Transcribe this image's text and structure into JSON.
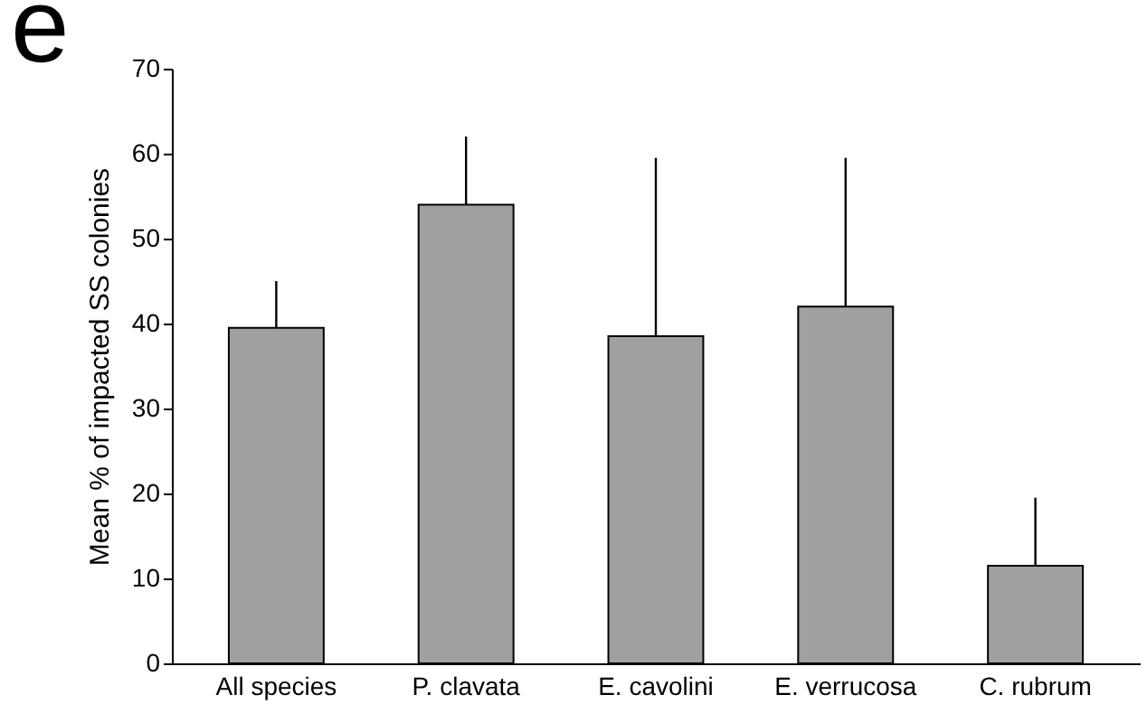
{
  "chart_data": {
    "type": "bar",
    "ylabel": "Mean % of impacted SS colonies",
    "categories": [
      "All species",
      "P. clavata",
      "E. cavolini",
      "E. verrucosa",
      "C. rubrum"
    ],
    "values": [
      39.5,
      54,
      38.5,
      42,
      11.5
    ],
    "errors": [
      [
        39.5,
        45
      ],
      [
        54,
        62
      ],
      [
        38.5,
        59.5
      ],
      [
        42,
        59.5
      ],
      [
        11.5,
        19.5
      ]
    ],
    "color": "#a0a0a0",
    "ylim": [
      0,
      70
    ],
    "yticks": [
      0,
      10,
      20,
      30,
      40,
      50,
      60,
      70
    ],
    "grid": false,
    "annotations": [
      "e"
    ]
  }
}
